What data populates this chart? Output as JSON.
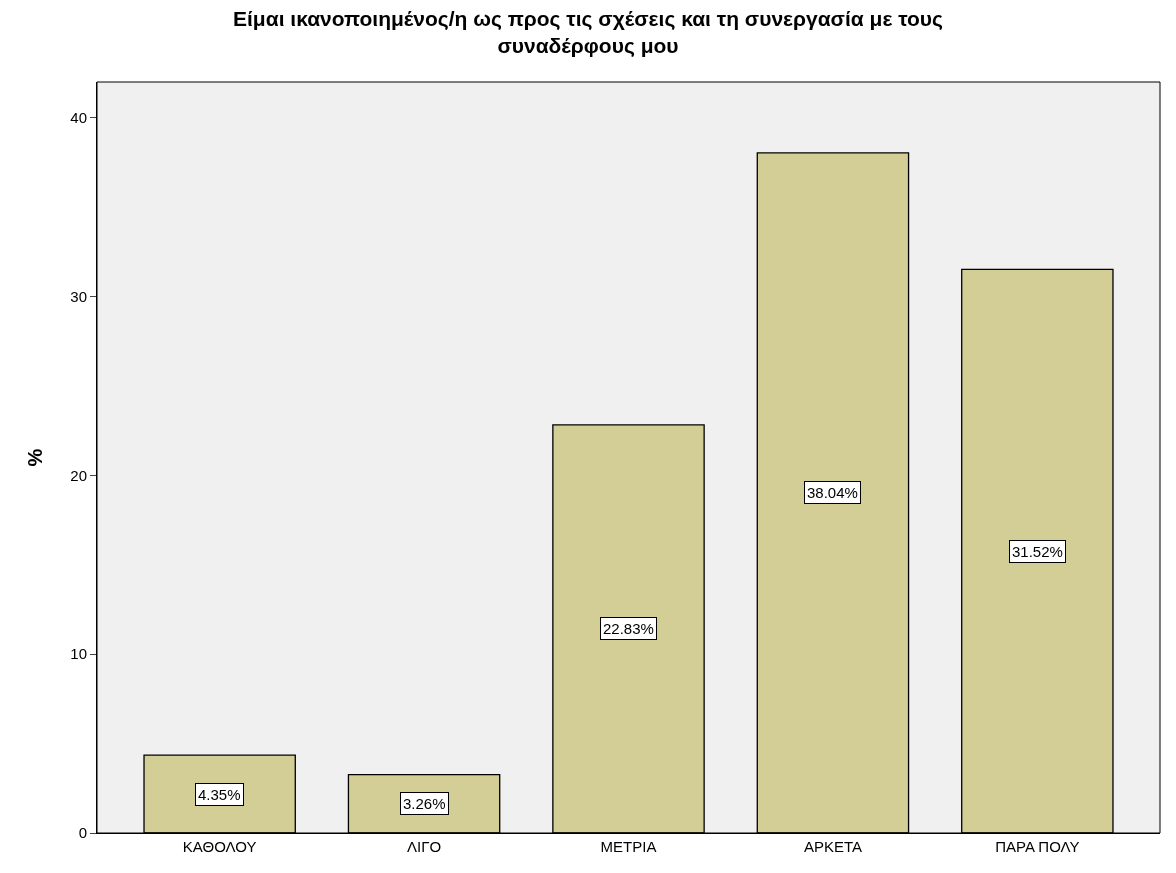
{
  "chart_data": {
    "type": "bar",
    "title": "Είμαι ικανοποιημένος/η ως προς τις σχέσεις και τη συνεργασία με τους συναδέρφους μου",
    "ylabel": "%",
    "categories": [
      "ΚΑΘΟΛΟΥ",
      "ΛΙΓΟ",
      "ΜΕΤΡΙΑ",
      "ΑΡΚΕΤΑ",
      "ΠΑΡΑ ΠΟΛΥ"
    ],
    "values": [
      4.35,
      3.26,
      22.83,
      38.04,
      31.52
    ],
    "value_labels": [
      "4.35%",
      "3.26%",
      "22.83%",
      "38.04%",
      "31.52%"
    ],
    "color": "#d3cd96",
    "ylim": [
      0,
      42
    ],
    "yticks": [
      0,
      10,
      20,
      30,
      40
    ],
    "grid": false
  }
}
